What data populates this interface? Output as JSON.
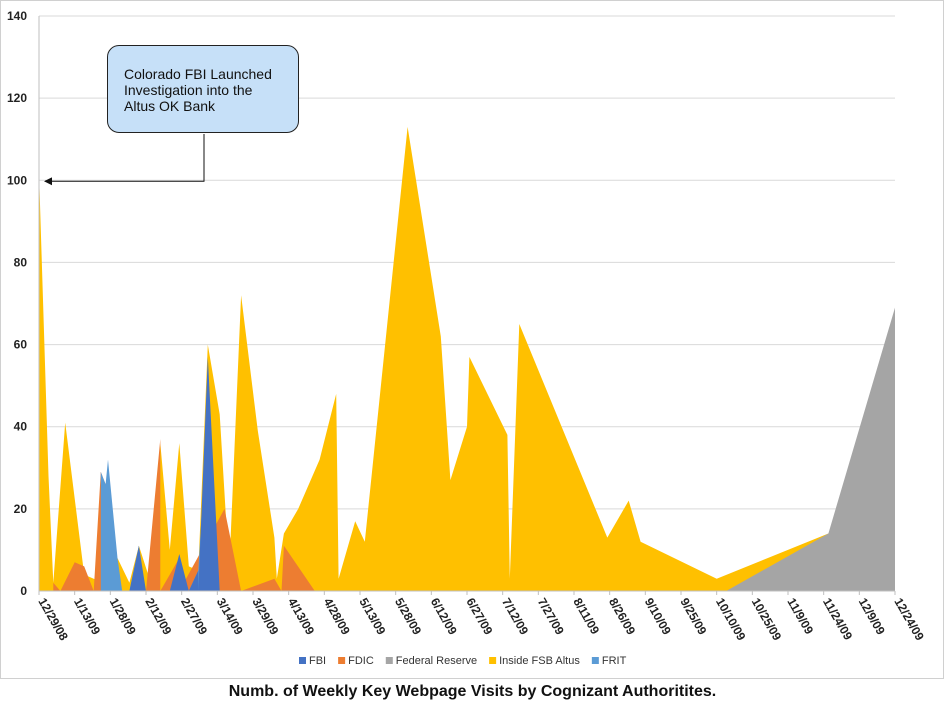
{
  "chart_data": {
    "type": "area",
    "title": "",
    "xlabel": "",
    "ylabel": "",
    "ylim": [
      0,
      140
    ],
    "yticks": [
      0,
      20,
      40,
      60,
      80,
      100,
      120,
      140
    ],
    "grid": true,
    "legend_position": "bottom",
    "x_tick_labels": [
      "12/29/08",
      "1/13/09",
      "1/28/09",
      "2/12/09",
      "2/27/09",
      "3/14/09",
      "3/29/09",
      "4/13/09",
      "4/28/09",
      "5/13/09",
      "5/28/09",
      "6/12/09",
      "6/27/09",
      "7/12/09",
      "7/27/09",
      "8/11/09",
      "8/26/09",
      "9/10/09",
      "9/25/09",
      "10/10/09",
      "10/25/09",
      "11/9/09",
      "11/24/09",
      "12/9/09",
      "12/24/09"
    ],
    "x_range": [
      "12/29/08",
      "12/24/09"
    ],
    "series": [
      {
        "name": "Inside FSB Altus",
        "color": "#ffc000",
        "points": [
          [
            "12/29/08",
            102
          ],
          [
            "1/2/09",
            28
          ],
          [
            "1/4/09",
            2
          ],
          [
            "1/9/09",
            41
          ],
          [
            "1/17/09",
            4
          ],
          [
            "1/21/09",
            3
          ],
          [
            "1/26/09",
            2
          ],
          [
            "1/31/09",
            8
          ],
          [
            "2/5/09",
            2
          ],
          [
            "2/9/09",
            11
          ],
          [
            "2/14/09",
            2
          ],
          [
            "2/18/09",
            36
          ],
          [
            "2/22/09",
            10
          ],
          [
            "2/26/09",
            36
          ],
          [
            "3/2/09",
            6
          ],
          [
            "3/6/09",
            5
          ],
          [
            "3/10/09",
            60
          ],
          [
            "3/15/09",
            43
          ],
          [
            "3/19/09",
            5
          ],
          [
            "3/24/09",
            72
          ],
          [
            "3/31/09",
            39
          ],
          [
            "4/7/09",
            13
          ],
          [
            "4/8/09",
            3
          ],
          [
            "4/11/09",
            14
          ],
          [
            "4/17/09",
            20
          ],
          [
            "4/26/09",
            32
          ],
          [
            "5/3/09",
            48
          ],
          [
            "5/4/09",
            3
          ],
          [
            "5/11/09",
            17
          ],
          [
            "5/15/09",
            12
          ],
          [
            "6/2/09",
            113
          ],
          [
            "6/16/09",
            62
          ],
          [
            "6/20/09",
            27
          ],
          [
            "6/27/09",
            40
          ],
          [
            "6/28/09",
            57
          ],
          [
            "7/14/09",
            38
          ],
          [
            "7/15/09",
            3
          ],
          [
            "7/19/09",
            65
          ],
          [
            "8/25/09",
            13
          ],
          [
            "9/3/09",
            22
          ],
          [
            "9/8/09",
            12
          ],
          [
            "10/10/09",
            3
          ],
          [
            "11/26/09",
            14
          ]
        ]
      },
      {
        "name": "FDIC",
        "color": "#ed7d31",
        "points": [
          [
            "1/4/09",
            2
          ],
          [
            "1/7/09",
            0
          ],
          [
            "1/13/09",
            7
          ],
          [
            "1/17/09",
            6
          ],
          [
            "1/21/09",
            0
          ],
          [
            "1/24/09",
            29
          ],
          [
            "1/26/09",
            26
          ],
          [
            "1/31/09",
            0
          ],
          [
            "2/12/09",
            0
          ],
          [
            "2/18/09",
            37
          ],
          [
            "2/18/09",
            0
          ],
          [
            "2/26/09",
            8
          ],
          [
            "2/26/09",
            0
          ],
          [
            "3/17/09",
            20
          ],
          [
            "3/24/09",
            0
          ],
          [
            "4/7/09",
            3
          ],
          [
            "4/10/09",
            0
          ],
          [
            "4/11/09",
            11
          ],
          [
            "4/24/09",
            0
          ]
        ]
      },
      {
        "name": "FBI",
        "color": "#4472c4",
        "points": [
          [
            "2/5/09",
            0
          ],
          [
            "2/9/09",
            11
          ],
          [
            "2/12/09",
            0
          ],
          [
            "2/22/09",
            0
          ],
          [
            "2/26/09",
            9
          ],
          [
            "3/2/09",
            0
          ],
          [
            "3/6/09",
            5
          ],
          [
            "3/6/09",
            0
          ],
          [
            "3/10/09",
            57
          ],
          [
            "3/15/09",
            0
          ]
        ]
      },
      {
        "name": "FRIT",
        "color": "#5b9bd5",
        "points": [
          [
            "1/24/09",
            29
          ],
          [
            "1/26/09",
            26
          ],
          [
            "1/27/09",
            32
          ],
          [
            "1/31/09",
            8
          ],
          [
            "2/2/09",
            0
          ],
          [
            "2/5/09",
            0
          ],
          [
            "2/9/09",
            11
          ],
          [
            "2/10/09",
            0
          ],
          [
            "3/2/09",
            0
          ],
          [
            "3/6/09",
            5
          ],
          [
            "3/10/09",
            44
          ],
          [
            "3/11/09",
            0
          ]
        ]
      },
      {
        "name": "Federal Reserve",
        "color": "#a5a5a5",
        "points": [
          [
            "10/14/09",
            0
          ],
          [
            "11/26/09",
            14
          ],
          [
            "12/24/09",
            69
          ]
        ]
      }
    ],
    "legend_order": [
      "FBI",
      "FDIC",
      "Federal Reserve",
      "Inside FSB Altus",
      "FRIT"
    ],
    "annotation": {
      "text": "Colorado FBI Launched Investigation into the Altus OK Bank",
      "points_to": [
        "12/29/08",
        100
      ]
    }
  },
  "callout_lines": [
    "Colorado FBI Launched",
    "Investigation into the",
    "Altus OK Bank"
  ],
  "caption": "Numb. of Weekly Key Webpage Visits by Cognizant Authoritites."
}
